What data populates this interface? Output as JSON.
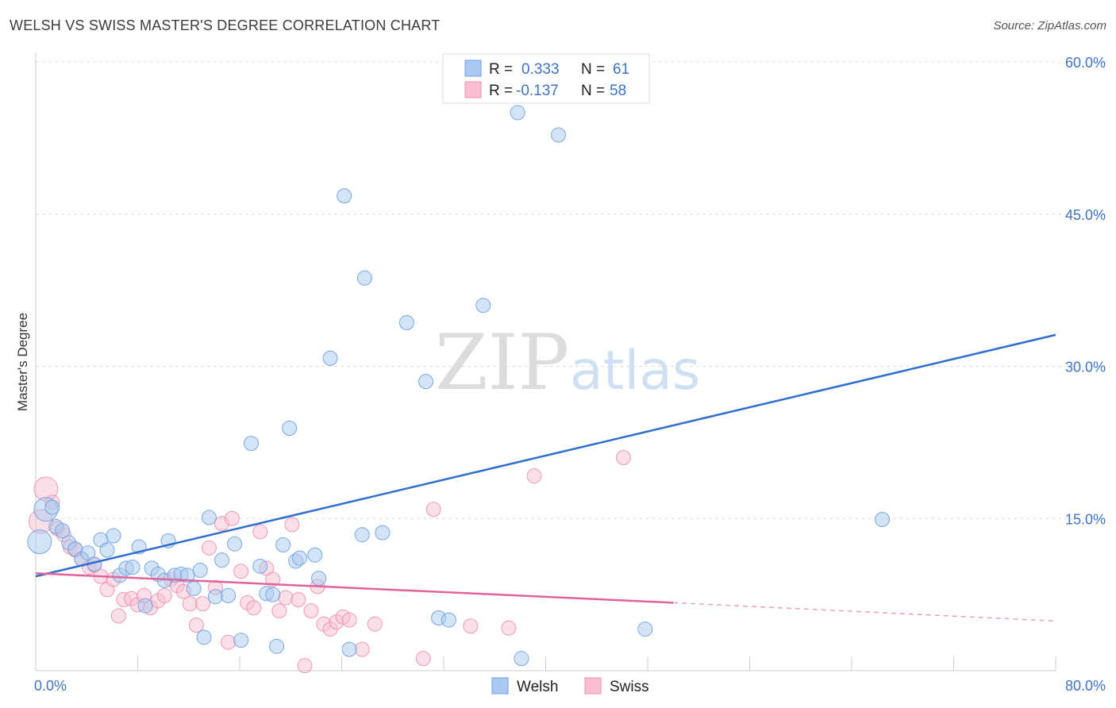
{
  "header": {
    "title": "WELSH VS SWISS MASTER'S DEGREE CORRELATION CHART",
    "source": "Source: ZipAtlas.com"
  },
  "watermark": {
    "zip": "ZIP",
    "atlas": "atlas"
  },
  "legend": {
    "rows": [
      {
        "r_label": "R =",
        "r_value": "0.333",
        "n_label": "N =",
        "n_value": "61",
        "color": "#a9c9f0",
        "stroke": "#6d9ee0"
      },
      {
        "r_label": "R =",
        "r_value": "-0.137",
        "n_label": "N =",
        "n_value": "58",
        "color": "#f8bfd0",
        "stroke": "#ec8fae"
      }
    ]
  },
  "bottom_legend": [
    {
      "label": "Welsh",
      "color": "#a9c9f0",
      "stroke": "#6d9ee0"
    },
    {
      "label": "Swiss",
      "color": "#f8bfd0",
      "stroke": "#ec8fae"
    }
  ],
  "chart_data": {
    "type": "scatter",
    "title": "WELSH VS SWISS MASTER'S DEGREE CORRELATION CHART",
    "ylabel": "Master's Degree",
    "xlabel": "",
    "xlim": [
      0,
      80
    ],
    "ylim": [
      0,
      60
    ],
    "x_tick_labels": [
      {
        "value": 0,
        "label": "0.0%"
      },
      {
        "value": 80,
        "label": "80.0%"
      }
    ],
    "y_tick_labels": [
      {
        "value": 15,
        "label": "15.0%"
      },
      {
        "value": 30,
        "label": "30.0%"
      },
      {
        "value": 45,
        "label": "45.0%"
      },
      {
        "value": 60,
        "label": "60.0%"
      }
    ],
    "grid": true,
    "legend_position": "top-center",
    "series": [
      {
        "name": "Welsh",
        "color": "#6d9ee0",
        "fill": "#a9c9f0",
        "trend": {
          "x": [
            0,
            80
          ],
          "y": [
            9.3,
            33.1
          ]
        },
        "points": [
          [
            0.3,
            12.7
          ],
          [
            0.8,
            15.9
          ],
          [
            1.3,
            16.1
          ],
          [
            1.6,
            14.2
          ],
          [
            2.1,
            13.8
          ],
          [
            2.6,
            12.6
          ],
          [
            3.1,
            12.0
          ],
          [
            3.6,
            11.0
          ],
          [
            4.1,
            11.6
          ],
          [
            4.6,
            10.5
          ],
          [
            5.1,
            12.9
          ],
          [
            5.6,
            11.9
          ],
          [
            6.1,
            13.3
          ],
          [
            6.6,
            9.4
          ],
          [
            7.1,
            10.1
          ],
          [
            7.6,
            10.2
          ],
          [
            8.1,
            12.2
          ],
          [
            8.6,
            6.4
          ],
          [
            9.1,
            10.1
          ],
          [
            9.6,
            9.5
          ],
          [
            10.1,
            8.9
          ],
          [
            10.4,
            12.8
          ],
          [
            10.9,
            9.4
          ],
          [
            11.4,
            9.5
          ],
          [
            11.9,
            9.4
          ],
          [
            12.4,
            8.1
          ],
          [
            12.9,
            9.9
          ],
          [
            13.2,
            3.3
          ],
          [
            13.6,
            15.1
          ],
          [
            14.1,
            7.3
          ],
          [
            14.6,
            10.9
          ],
          [
            15.1,
            7.4
          ],
          [
            15.6,
            12.5
          ],
          [
            16.1,
            3.0
          ],
          [
            16.9,
            22.4
          ],
          [
            17.6,
            10.3
          ],
          [
            18.1,
            7.6
          ],
          [
            18.6,
            7.5
          ],
          [
            18.9,
            2.4
          ],
          [
            19.4,
            12.4
          ],
          [
            19.9,
            23.9
          ],
          [
            20.4,
            10.8
          ],
          [
            20.7,
            11.1
          ],
          [
            21.9,
            11.4
          ],
          [
            22.2,
            9.1
          ],
          [
            23.1,
            30.8
          ],
          [
            24.2,
            46.8
          ],
          [
            24.6,
            2.1
          ],
          [
            25.6,
            13.4
          ],
          [
            25.8,
            38.7
          ],
          [
            27.2,
            13.6
          ],
          [
            29.1,
            34.3
          ],
          [
            30.6,
            28.5
          ],
          [
            31.6,
            5.2
          ],
          [
            32.4,
            5.0
          ],
          [
            35.1,
            36.0
          ],
          [
            37.8,
            55.0
          ],
          [
            38.1,
            1.2
          ],
          [
            41.0,
            52.8
          ],
          [
            47.8,
            4.1
          ],
          [
            66.4,
            14.9
          ]
        ]
      },
      {
        "name": "Swiss",
        "color": "#ec8fae",
        "fill": "#f8bfd0",
        "trend": {
          "x": [
            0,
            50
          ],
          "y": [
            9.6,
            6.7
          ]
        },
        "trend_dashed": {
          "x": [
            50,
            80
          ],
          "y": [
            6.7,
            4.9
          ]
        },
        "points": [
          [
            0.4,
            14.7
          ],
          [
            0.8,
            17.9
          ],
          [
            1.3,
            16.6
          ],
          [
            1.7,
            14.0
          ],
          [
            2.2,
            13.4
          ],
          [
            2.7,
            12.2
          ],
          [
            3.1,
            11.9
          ],
          [
            3.6,
            11.0
          ],
          [
            4.2,
            10.2
          ],
          [
            4.6,
            10.4
          ],
          [
            5.1,
            9.3
          ],
          [
            5.6,
            8.0
          ],
          [
            6.1,
            9.0
          ],
          [
            6.5,
            5.4
          ],
          [
            6.9,
            7.0
          ],
          [
            7.5,
            7.1
          ],
          [
            8.0,
            6.5
          ],
          [
            8.5,
            7.4
          ],
          [
            9.0,
            6.2
          ],
          [
            9.6,
            6.9
          ],
          [
            10.1,
            7.4
          ],
          [
            10.6,
            9.0
          ],
          [
            11.1,
            8.4
          ],
          [
            11.6,
            7.8
          ],
          [
            12.1,
            6.6
          ],
          [
            12.6,
            4.5
          ],
          [
            13.1,
            6.6
          ],
          [
            13.6,
            12.1
          ],
          [
            14.1,
            8.2
          ],
          [
            14.6,
            14.5
          ],
          [
            15.1,
            2.8
          ],
          [
            15.4,
            15.0
          ],
          [
            16.1,
            9.8
          ],
          [
            16.6,
            6.7
          ],
          [
            17.1,
            6.2
          ],
          [
            17.6,
            13.7
          ],
          [
            18.1,
            10.1
          ],
          [
            18.6,
            9.0
          ],
          [
            19.1,
            5.9
          ],
          [
            19.6,
            7.2
          ],
          [
            20.1,
            14.4
          ],
          [
            20.6,
            7.0
          ],
          [
            21.1,
            0.5
          ],
          [
            21.6,
            5.9
          ],
          [
            22.1,
            8.3
          ],
          [
            22.6,
            4.6
          ],
          [
            23.1,
            4.1
          ],
          [
            23.6,
            4.8
          ],
          [
            24.1,
            5.3
          ],
          [
            24.6,
            5.0
          ],
          [
            25.6,
            2.1
          ],
          [
            26.6,
            4.6
          ],
          [
            30.4,
            1.2
          ],
          [
            31.2,
            15.9
          ],
          [
            34.1,
            4.4
          ],
          [
            37.1,
            4.2
          ],
          [
            39.1,
            19.2
          ],
          [
            46.1,
            21.0
          ]
        ]
      }
    ]
  }
}
